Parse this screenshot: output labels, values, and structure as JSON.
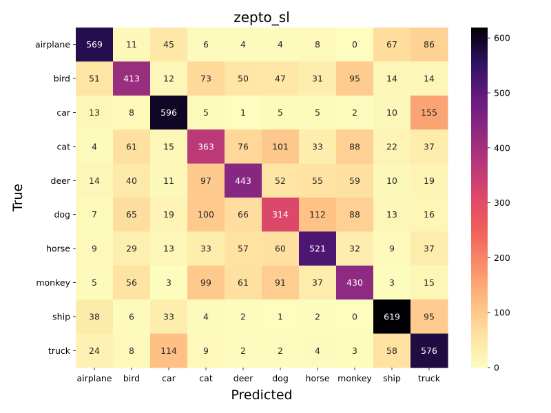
{
  "chart_data": {
    "type": "heatmap",
    "title": "zepto_sl",
    "xlabel": "Predicted",
    "ylabel": "True",
    "x_categories": [
      "airplane",
      "bird",
      "car",
      "cat",
      "deer",
      "dog",
      "horse",
      "monkey",
      "ship",
      "truck"
    ],
    "y_categories": [
      "airplane",
      "bird",
      "car",
      "cat",
      "deer",
      "dog",
      "horse",
      "monkey",
      "ship",
      "truck"
    ],
    "values": [
      [
        569,
        11,
        45,
        6,
        4,
        4,
        8,
        0,
        67,
        86
      ],
      [
        51,
        413,
        12,
        73,
        50,
        47,
        31,
        95,
        14,
        14
      ],
      [
        13,
        8,
        596,
        5,
        1,
        5,
        5,
        2,
        10,
        155
      ],
      [
        4,
        61,
        15,
        363,
        76,
        101,
        33,
        88,
        22,
        37
      ],
      [
        14,
        40,
        11,
        97,
        443,
        52,
        55,
        59,
        10,
        19
      ],
      [
        7,
        65,
        19,
        100,
        66,
        314,
        112,
        88,
        13,
        16
      ],
      [
        9,
        29,
        13,
        33,
        57,
        60,
        521,
        32,
        9,
        37
      ],
      [
        5,
        56,
        3,
        99,
        61,
        91,
        37,
        430,
        3,
        15
      ],
      [
        38,
        6,
        33,
        4,
        2,
        1,
        2,
        0,
        619,
        95
      ],
      [
        24,
        8,
        114,
        9,
        2,
        2,
        4,
        3,
        58,
        576
      ]
    ],
    "colormap": "magma_r",
    "colorbar": {
      "range": [
        0,
        619
      ],
      "ticks": [
        0,
        100,
        200,
        300,
        400,
        500,
        600
      ]
    }
  }
}
